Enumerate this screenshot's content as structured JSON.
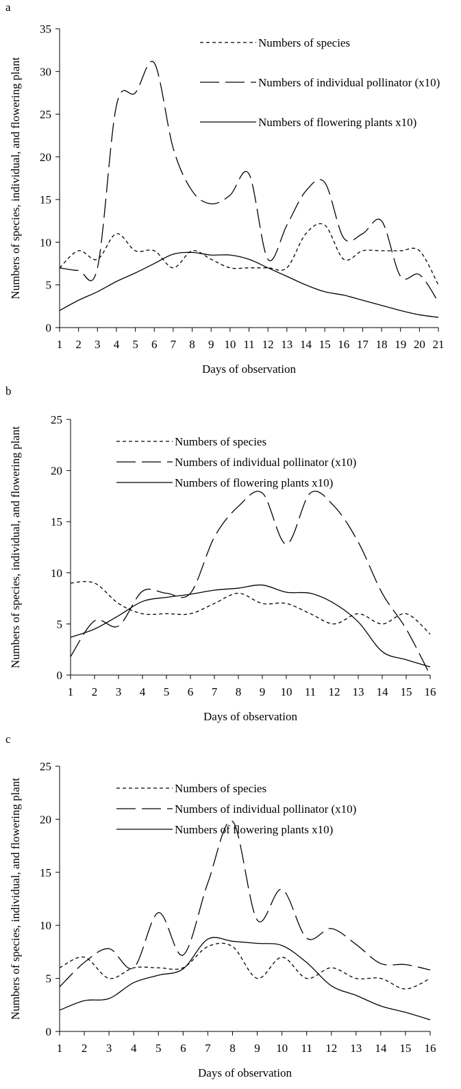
{
  "chart_data": [
    {
      "type": "line",
      "label": "a",
      "xlabel": "Days of observation",
      "ylabel": "Numbers of species, individual, and flowering plant",
      "x": [
        1,
        2,
        3,
        4,
        5,
        6,
        7,
        8,
        9,
        10,
        11,
        12,
        13,
        14,
        15,
        16,
        17,
        18,
        19,
        20,
        21
      ],
      "xlim": [
        1,
        21
      ],
      "xticks": [
        1,
        2,
        3,
        4,
        5,
        6,
        7,
        8,
        9,
        10,
        11,
        12,
        13,
        14,
        15,
        16,
        17,
        18,
        19,
        20,
        21
      ],
      "ylim": [
        0,
        35
      ],
      "yticks": [
        0,
        5,
        10,
        15,
        20,
        25,
        30,
        35
      ],
      "series": [
        {
          "name": "Numbers of species",
          "color": "#000000",
          "line_style": "dashed",
          "values": [
            7,
            9,
            8,
            11,
            9,
            9,
            7,
            9,
            8,
            7,
            7,
            7,
            7,
            11,
            12,
            8,
            9,
            9,
            9,
            9,
            5
          ]
        },
        {
          "name": "Numbers of individual pollinator (x10)",
          "color": "#000000",
          "line_style": "long-dashed",
          "values": [
            7,
            6.7,
            7,
            26,
            27.5,
            31,
            21,
            16,
            14.5,
            15.5,
            18,
            8,
            12,
            16,
            17,
            10.5,
            11,
            12.5,
            6,
            6.2,
            3
          ]
        },
        {
          "name": "Numbers of flowering plants x10)",
          "color": "#000000",
          "line_style": "solid",
          "values": [
            2,
            3.2,
            4.2,
            5.4,
            6.4,
            7.5,
            8.6,
            8.8,
            8.5,
            8.5,
            8,
            7,
            6,
            5,
            4.2,
            3.8,
            3.2,
            2.6,
            2,
            1.5,
            1.2
          ]
        }
      ]
    },
    {
      "type": "line",
      "label": "b",
      "xlabel": "Days of observation",
      "ylabel": "Numbers of species, individual, and flowering plant",
      "x": [
        1,
        2,
        3,
        4,
        5,
        6,
        7,
        8,
        9,
        10,
        11,
        12,
        13,
        14,
        15,
        16
      ],
      "xlim": [
        1,
        16
      ],
      "xticks": [
        1,
        2,
        3,
        4,
        5,
        6,
        7,
        8,
        9,
        10,
        11,
        12,
        13,
        14,
        15,
        16
      ],
      "ylim": [
        0,
        25
      ],
      "yticks": [
        0,
        5,
        10,
        15,
        20,
        25
      ],
      "series": [
        {
          "name": "Numbers of species",
          "color": "#000000",
          "line_style": "dashed",
          "values": [
            9,
            9,
            7,
            6,
            6,
            6,
            7,
            8,
            7,
            7,
            6,
            5,
            6,
            5,
            6,
            4
          ]
        },
        {
          "name": "Numbers of individual pollinator (x10)",
          "color": "#000000",
          "line_style": "long-dashed",
          "values": [
            1.8,
            5.3,
            4.8,
            8.2,
            8,
            8,
            13.5,
            16.5,
            17.8,
            12.8,
            17.8,
            16.5,
            13,
            8,
            4.5,
            0
          ]
        },
        {
          "name": "Numbers of flowering plants x10)",
          "color": "#000000",
          "line_style": "solid",
          "values": [
            3.7,
            4.5,
            5.8,
            7.2,
            7.6,
            7.9,
            8.3,
            8.5,
            8.8,
            8.1,
            8,
            7,
            5.2,
            2.3,
            1.5,
            0.8
          ]
        }
      ]
    },
    {
      "type": "line",
      "label": "c",
      "xlabel": "Days of observation",
      "ylabel": "Numbers of species, individual, and flowering plant",
      "x": [
        1,
        2,
        3,
        4,
        5,
        6,
        7,
        8,
        9,
        10,
        11,
        12,
        13,
        14,
        15,
        16
      ],
      "xlim": [
        1,
        16
      ],
      "xticks": [
        1,
        2,
        3,
        4,
        5,
        6,
        7,
        8,
        9,
        10,
        11,
        12,
        13,
        14,
        15,
        16
      ],
      "ylim": [
        0,
        25
      ],
      "yticks": [
        0,
        5,
        10,
        15,
        20,
        25
      ],
      "series": [
        {
          "name": "Numbers of species",
          "color": "#000000",
          "line_style": "dashed",
          "values": [
            6,
            7,
            5,
            6,
            6,
            6,
            8,
            8,
            5,
            7,
            5,
            6,
            5,
            5,
            4,
            5
          ]
        },
        {
          "name": "Numbers of individual pollinator (x10)",
          "color": "#000000",
          "line_style": "long-dashed",
          "values": [
            4.2,
            6.5,
            7.8,
            6,
            11.2,
            7.2,
            14,
            19.8,
            10.5,
            13.4,
            8.8,
            9.7,
            8.2,
            6.4,
            6.3,
            5.8
          ]
        },
        {
          "name": "Numbers of flowering plants x10)",
          "color": "#000000",
          "line_style": "solid",
          "values": [
            2,
            2.9,
            3.1,
            4.6,
            5.3,
            5.9,
            8.7,
            8.5,
            8.3,
            8.1,
            6.5,
            4.3,
            3.4,
            2.4,
            1.8,
            1.1
          ]
        }
      ]
    }
  ]
}
